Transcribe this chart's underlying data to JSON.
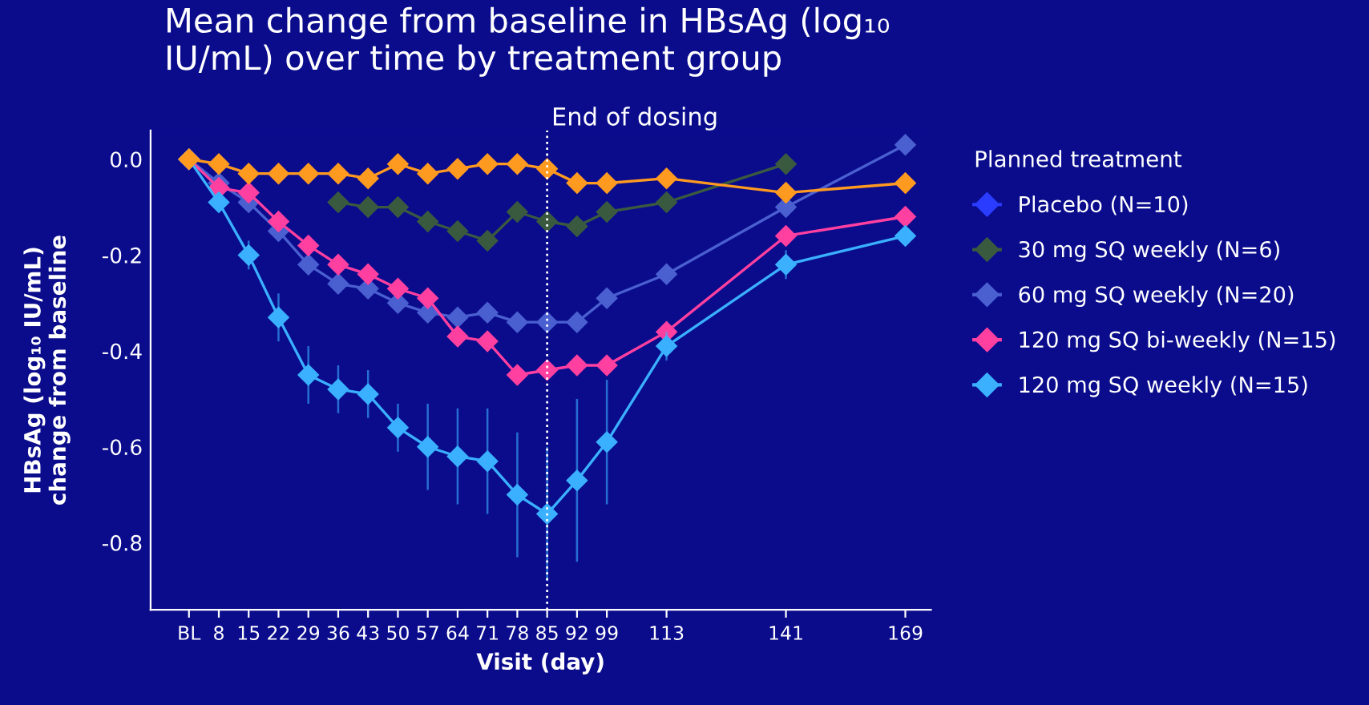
{
  "chart_data": {
    "type": "line",
    "title": "Mean change from baseline in HBsAg (log₁₀\nIU/mL) over time by treatment group",
    "xlabel": "Visit (day)",
    "ylabel": "HBsAg (log₁₀ IU/mL)\nchange from baseline",
    "legend_title": "Planned treatment",
    "x": [
      1,
      8,
      15,
      22,
      29,
      36,
      43,
      50,
      57,
      64,
      71,
      78,
      85,
      92,
      99,
      113,
      141,
      169
    ],
    "series": [
      {
        "name": "Placebo (N=10)",
        "color": "#2a3cff",
        "values": [
          null,
          null,
          null,
          null,
          null,
          null,
          null,
          null,
          null,
          null,
          null,
          null,
          null,
          null,
          null,
          null,
          null,
          null
        ]
      },
      {
        "name": "30 mg SQ weekly (N=6)",
        "color": "#3a5a40",
        "values": [
          null,
          null,
          null,
          null,
          null,
          -0.09,
          -0.1,
          -0.1,
          -0.13,
          -0.15,
          -0.17,
          -0.11,
          -0.13,
          -0.14,
          -0.11,
          -0.09,
          -0.01,
          null
        ]
      },
      {
        "name": "60 mg SQ weekly (N=20)",
        "color": "#4a5fd0",
        "values": [
          0.0,
          -0.05,
          -0.09,
          -0.15,
          -0.22,
          -0.26,
          -0.27,
          -0.3,
          -0.32,
          -0.33,
          -0.32,
          -0.34,
          -0.34,
          -0.34,
          -0.29,
          -0.24,
          -0.1,
          0.03
        ]
      },
      {
        "name": "120 mg SQ bi-weekly (N=15)",
        "color": "#ff40a0",
        "values": [
          0.0,
          -0.06,
          -0.07,
          -0.13,
          -0.18,
          -0.22,
          -0.24,
          -0.27,
          -0.29,
          -0.37,
          -0.38,
          -0.45,
          -0.44,
          -0.43,
          -0.43,
          -0.36,
          -0.16,
          -0.12
        ]
      },
      {
        "name": "120 mg SQ weekly (N=15)",
        "color": "#3ab0ff",
        "values": [
          0.0,
          -0.09,
          -0.2,
          -0.33,
          -0.45,
          -0.48,
          -0.49,
          -0.56,
          -0.6,
          -0.62,
          -0.63,
          -0.7,
          -0.74,
          -0.67,
          -0.59,
          -0.39,
          -0.22,
          -0.16
        ],
        "errors": [
          null,
          0.02,
          0.03,
          0.05,
          0.06,
          0.05,
          0.05,
          0.05,
          0.09,
          0.1,
          0.11,
          0.13,
          0.14,
          0.17,
          0.13,
          0.03,
          0.03,
          0.02
        ]
      },
      {
        "color": "#ff9a20",
        "values": [
          0.0,
          -0.01,
          -0.03,
          -0.03,
          -0.03,
          -0.03,
          -0.04,
          -0.01,
          -0.03,
          -0.02,
          -0.01,
          -0.01,
          -0.02,
          -0.05,
          -0.05,
          -0.04,
          -0.07,
          -0.05
        ]
      }
    ],
    "xlim": [
      -8,
      175
    ],
    "ylim": [
      -0.94,
      0.06
    ],
    "xticks": [
      {
        "value": 1,
        "label": "BL"
      },
      8,
      15,
      22,
      29,
      36,
      43,
      50,
      57,
      64,
      71,
      78,
      85,
      92,
      99,
      113,
      141,
      169
    ],
    "yticks": [
      {
        "value": 0,
        "label": "0.0"
      },
      {
        "value": -0.2,
        "label": "-0.2"
      },
      {
        "value": -0.4,
        "label": "-0.4"
      },
      {
        "value": -0.6,
        "label": "-0.6"
      },
      {
        "value": -0.8,
        "label": "-0.8"
      }
    ],
    "ref_lines": [
      {
        "axis": "x",
        "value": 85,
        "label": "End of dosing",
        "color": "#ffffff",
        "line_style": "dotted"
      }
    ],
    "marker": "diamond",
    "line_style": "solid",
    "legend": "right",
    "grid": false
  }
}
